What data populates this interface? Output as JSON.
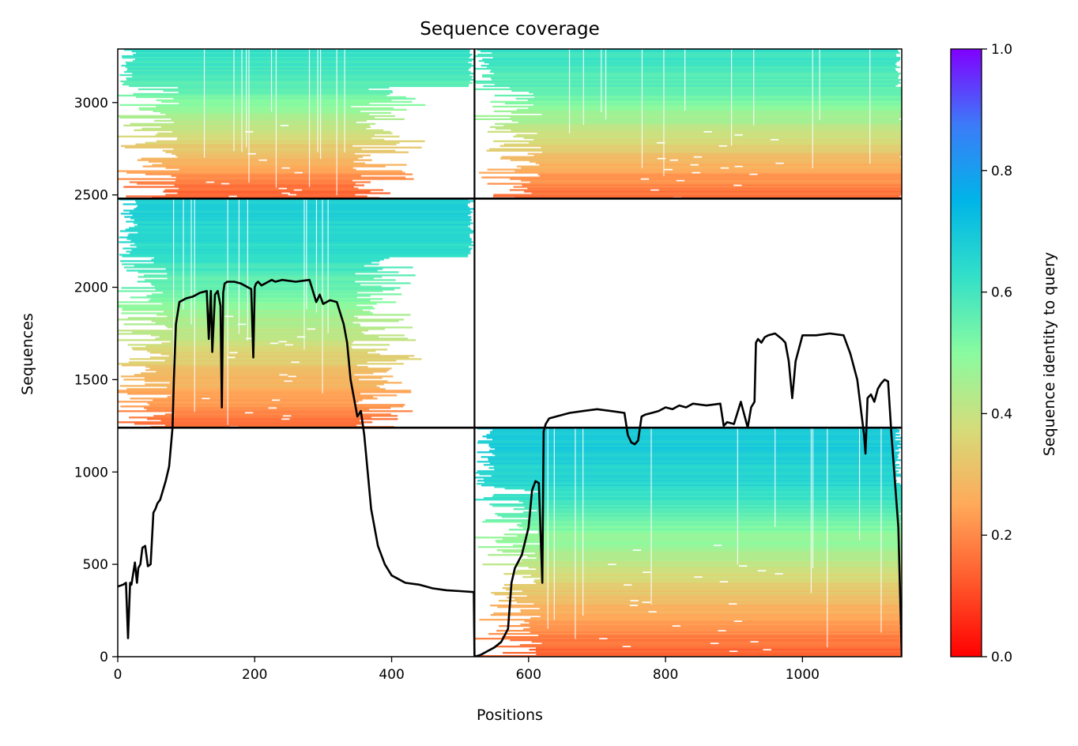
{
  "chart_data": {
    "type": "heatmap",
    "title": "Sequence coverage",
    "xlabel": "Positions",
    "ylabel": "Sequences",
    "xlim": [
      0,
      1145
    ],
    "ylim": [
      0,
      3290
    ],
    "x_ticks": [
      "0",
      "200",
      "400",
      "600",
      "800",
      "1000"
    ],
    "y_ticks": [
      "0",
      "500",
      "1000",
      "1500",
      "2000",
      "2500",
      "3000"
    ],
    "grid": false,
    "boundaries": {
      "domain_split_x": 521,
      "block_split_y": [
        1240,
        2480
      ]
    },
    "colorbar": {
      "label": "Sequence identity to query",
      "range": [
        0.0,
        1.0
      ],
      "ticks": [
        "0.0",
        "0.2",
        "0.4",
        "0.6",
        "0.8",
        "1.0"
      ],
      "colormap": "rainbow_r",
      "stops": [
        "#ff0000",
        "#ff5a2d",
        "#ffa95a",
        "#d5dc7a",
        "#89fba0",
        "#33e0c8",
        "#00b5e8",
        "#3c7bf8",
        "#8000ff"
      ]
    },
    "blocks": [
      {
        "name": "top-left",
        "x": [
          0,
          521
        ],
        "y": [
          2480,
          3290
        ],
        "top_identity": 0.62,
        "bottom_identity": 0.12,
        "core_x": [
          90,
          340
        ]
      },
      {
        "name": "top-right",
        "x": [
          521,
          1145
        ],
        "y": [
          2480,
          3290
        ],
        "top_identity": 0.62,
        "bottom_identity": 0.14,
        "core_x": [
          620,
          1140
        ]
      },
      {
        "name": "middle-left",
        "x": [
          0,
          521
        ],
        "y": [
          1240,
          2480
        ],
        "top_identity": 0.68,
        "bottom_identity": 0.15,
        "core_x": [
          80,
          340
        ]
      },
      {
        "name": "bottom-right",
        "x": [
          521,
          1145
        ],
        "y": [
          0,
          1240
        ],
        "top_identity": 0.7,
        "bottom_identity": 0.12,
        "core_x": [
          620,
          1140
        ]
      }
    ],
    "series": [
      {
        "type": "line",
        "color": "#000000",
        "x": [
          0,
          8,
          12,
          15,
          18,
          20,
          25,
          28,
          30,
          33,
          36,
          40,
          44,
          48,
          52,
          55,
          58,
          62,
          70,
          75,
          80,
          82,
          85,
          90,
          100,
          110,
          120,
          130,
          133,
          136,
          138,
          142,
          146,
          150,
          152,
          154,
          156,
          160,
          170,
          180,
          195,
          198,
          200,
          202,
          205,
          210,
          220,
          225,
          230,
          240,
          260,
          280,
          285,
          290,
          295,
          300,
          310,
          320,
          330,
          335,
          340,
          350,
          355,
          360,
          370,
          380,
          390,
          400,
          420,
          440,
          460,
          480,
          500,
          520,
          521
        ],
        "y": [
          380,
          390,
          400,
          100,
          400,
          390,
          510,
          400,
          480,
          500,
          590,
          600,
          490,
          500,
          780,
          800,
          830,
          850,
          950,
          1030,
          1240,
          1500,
          1800,
          1920,
          1940,
          1950,
          1970,
          1980,
          1720,
          1980,
          1650,
          1960,
          1980,
          1900,
          1350,
          1970,
          2020,
          2030,
          2030,
          2020,
          1990,
          1620,
          2000,
          2020,
          2030,
          2010,
          2030,
          2040,
          2030,
          2040,
          2030,
          2040,
          1980,
          1920,
          1960,
          1910,
          1930,
          1920,
          1800,
          1700,
          1500,
          1300,
          1330,
          1200,
          800,
          600,
          500,
          440,
          400,
          390,
          370,
          360,
          355,
          350,
          0
        ]
      },
      {
        "type": "line",
        "color": "#000000",
        "x": [
          521,
          530,
          540,
          550,
          560,
          570,
          575,
          580,
          590,
          600,
          605,
          610,
          615,
          620,
          622,
          625,
          630,
          640,
          660,
          680,
          700,
          720,
          740,
          745,
          750,
          755,
          760,
          765,
          770,
          780,
          790,
          800,
          810,
          820,
          830,
          840,
          860,
          880,
          885,
          890,
          900,
          910,
          920,
          925,
          930,
          932,
          935,
          940,
          945,
          950,
          960,
          970,
          975,
          980,
          985,
          990,
          1000,
          1020,
          1040,
          1060,
          1070,
          1080,
          1090,
          1092,
          1095,
          1100,
          1105,
          1110,
          1115,
          1120,
          1125,
          1130,
          1140,
          1145
        ],
        "y": [
          0,
          10,
          30,
          50,
          80,
          150,
          400,
          480,
          550,
          700,
          900,
          950,
          940,
          400,
          1220,
          1260,
          1290,
          1300,
          1320,
          1330,
          1340,
          1330,
          1320,
          1200,
          1160,
          1150,
          1170,
          1300,
          1310,
          1320,
          1330,
          1350,
          1340,
          1360,
          1350,
          1370,
          1360,
          1370,
          1250,
          1270,
          1260,
          1380,
          1240,
          1350,
          1380,
          1700,
          1720,
          1700,
          1730,
          1740,
          1750,
          1720,
          1700,
          1600,
          1400,
          1600,
          1740,
          1740,
          1750,
          1740,
          1640,
          1500,
          1200,
          1100,
          1400,
          1420,
          1380,
          1450,
          1480,
          1500,
          1490,
          1200,
          700,
          0
        ]
      }
    ]
  }
}
